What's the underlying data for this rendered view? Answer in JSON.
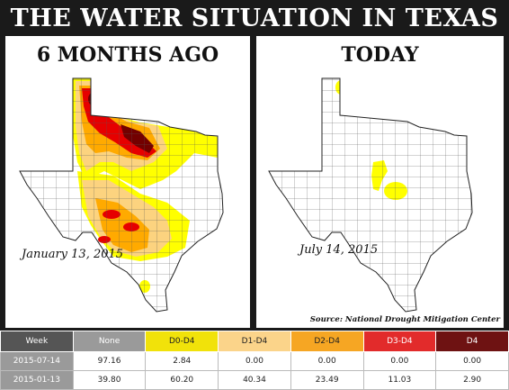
{
  "title": "THE WATER SITUATION IN TEXAS",
  "left_panel": {
    "heading": "6 MONTHS AGO",
    "date": "January 13, 2015"
  },
  "right_panel": {
    "heading": "TODAY",
    "date": "July 14, 2015",
    "source": "Source: National Drought Mitigation Center"
  },
  "legend_colors": {
    "none": "#ffffff",
    "d0": "#ffff00",
    "d1": "#fcd37f",
    "d2": "#ffaa00",
    "d3": "#e60000",
    "d4": "#730000"
  },
  "table": {
    "headers": [
      {
        "label": "Week",
        "bg": "#555555",
        "fg": "#ffffff"
      },
      {
        "label": "None",
        "bg": "#9a9a9a",
        "fg": "#ffffff"
      },
      {
        "label": "D0-D4",
        "bg": "#f1e20a",
        "fg": "#222222"
      },
      {
        "label": "D1-D4",
        "bg": "#fbd48a",
        "fg": "#222222"
      },
      {
        "label": "D2-D4",
        "bg": "#f6a623",
        "fg": "#222222"
      },
      {
        "label": "D3-D4",
        "bg": "#e22b2b",
        "fg": "#ffffff"
      },
      {
        "label": "D4",
        "bg": "#6e1212",
        "fg": "#ffffff"
      }
    ],
    "rows": [
      [
        "2015-07-14",
        "97.16",
        "2.84",
        "0.00",
        "0.00",
        "0.00",
        "0.00"
      ],
      [
        "2015-01-13",
        "39.80",
        "60.20",
        "40.34",
        "23.49",
        "11.03",
        "2.90"
      ]
    ]
  }
}
